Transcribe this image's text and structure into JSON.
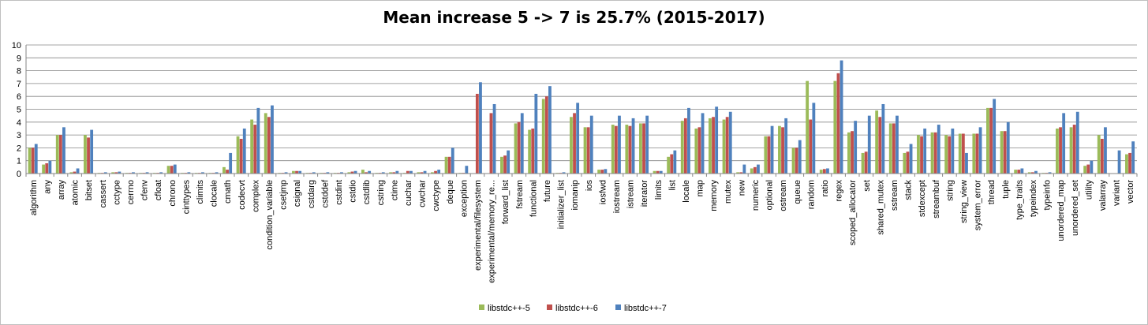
{
  "chart_data": {
    "type": "bar",
    "title": "Mean increase 5 -> 7 is 25.7% (2015-2017)",
    "xlabel": "",
    "ylabel": "",
    "ylim": [
      0,
      10
    ],
    "yticks": [
      0,
      1,
      2,
      3,
      4,
      5,
      6,
      7,
      8,
      9,
      10
    ],
    "grid": true,
    "legend_position": "bottom",
    "categories": [
      "algorithm",
      "any",
      "array",
      "atomic",
      "bitset",
      "cassert",
      "cctype",
      "cerrno",
      "cfenv",
      "cfloat",
      "chrono",
      "cinttypes",
      "climits",
      "clocale",
      "cmath",
      "codecvt",
      "complex",
      "condition_variable",
      "csetjmp",
      "csignal",
      "cstdarg",
      "cstddef",
      "cstdint",
      "cstdio",
      "cstdlib",
      "cstring",
      "ctime",
      "cuchar",
      "cwchar",
      "cwctype",
      "deque",
      "exception",
      "experimental/filesystem",
      "experimental/memory_re...",
      "forward_list",
      "fstream",
      "functional",
      "future",
      "initializer_list",
      "iomanip",
      "ios",
      "iosfwd",
      "iostream",
      "istream",
      "iterator",
      "limits",
      "list",
      "locale",
      "map",
      "memory",
      "mutex",
      "new",
      "numeric",
      "optional",
      "ostream",
      "queue",
      "random",
      "ratio",
      "regex",
      "scoped_allocator",
      "set",
      "shared_mutex",
      "sstream",
      "stack",
      "stdexcept",
      "streambuf",
      "string",
      "string_view",
      "system_error",
      "thread",
      "tuple",
      "type_traits",
      "typeindex",
      "typeinfo",
      "unordered_map",
      "unordered_set",
      "utility",
      "valarray",
      "variant",
      "vector"
    ],
    "series": [
      {
        "name": "libstdc++-5",
        "color": "#9bbb59",
        "values": [
          2.0,
          0.7,
          3.0,
          0.1,
          3.0,
          0.05,
          0.1,
          0.05,
          0.05,
          0.05,
          0.6,
          0.05,
          0.05,
          0.05,
          0.5,
          2.9,
          4.2,
          4.7,
          0.05,
          0.2,
          0.05,
          0.05,
          0.05,
          0.1,
          0.3,
          0.05,
          0.1,
          0.05,
          0.1,
          0.1,
          1.3,
          0.05,
          0,
          0,
          1.3,
          3.9,
          3.4,
          5.8,
          0.05,
          4.4,
          3.6,
          0.3,
          3.8,
          3.8,
          3.9,
          0.2,
          1.3,
          4.1,
          3.5,
          4.3,
          4.2,
          0.1,
          0.4,
          2.9,
          3.7,
          2.0,
          7.2,
          0.3,
          7.2,
          3.2,
          1.6,
          4.9,
          3.9,
          1.6,
          3.0,
          3.2,
          3.0,
          3.1,
          3.1,
          5.1,
          3.3,
          0.3,
          0.1,
          0.05,
          3.5,
          3.6,
          0.6,
          3.0,
          0,
          1.5
        ]
      },
      {
        "name": "libstdc++-6",
        "color": "#c0504d",
        "values": [
          2.0,
          0.8,
          3.0,
          0.15,
          2.8,
          0.05,
          0.1,
          0.05,
          0.05,
          0.05,
          0.6,
          0.05,
          0.05,
          0.05,
          0.3,
          2.7,
          3.8,
          4.4,
          0.05,
          0.2,
          0.05,
          0.05,
          0.05,
          0.15,
          0.1,
          0.05,
          0.1,
          0.2,
          0.1,
          0.2,
          1.3,
          0.05,
          6.2,
          4.7,
          1.4,
          4.0,
          3.5,
          6.0,
          0.05,
          4.7,
          3.6,
          0.3,
          3.7,
          3.7,
          3.9,
          0.2,
          1.5,
          4.3,
          3.6,
          4.4,
          4.4,
          0.1,
          0.5,
          2.9,
          3.6,
          2.0,
          4.2,
          0.35,
          7.8,
          3.3,
          1.7,
          4.4,
          3.9,
          1.7,
          2.9,
          3.2,
          2.9,
          3.1,
          3.1,
          5.1,
          3.3,
          0.3,
          0.1,
          0.05,
          3.6,
          3.8,
          0.7,
          2.7,
          0,
          1.6
        ]
      },
      {
        "name": "libstdc++-7",
        "color": "#4f81bd",
        "values": [
          2.3,
          1.0,
          3.6,
          0.4,
          3.4,
          0.1,
          0.15,
          0.1,
          0.1,
          0.1,
          0.7,
          0.1,
          0.1,
          0.1,
          1.6,
          3.5,
          5.1,
          5.3,
          0.1,
          0.2,
          0.1,
          0.1,
          0.1,
          0.2,
          0.2,
          0.1,
          0.2,
          0.2,
          0.2,
          0.3,
          2.0,
          0.6,
          7.1,
          5.4,
          1.8,
          4.7,
          6.2,
          6.8,
          0.1,
          5.5,
          4.5,
          0.35,
          4.5,
          4.3,
          4.5,
          0.2,
          1.8,
          5.1,
          4.7,
          5.2,
          4.8,
          0.7,
          0.7,
          3.7,
          4.3,
          2.6,
          5.5,
          0.4,
          8.8,
          4.1,
          4.5,
          5.4,
          4.5,
          2.3,
          3.5,
          3.8,
          3.5,
          1.6,
          3.6,
          5.8,
          4.0,
          0.4,
          0.2,
          0.1,
          4.7,
          4.8,
          1.0,
          3.6,
          1.8,
          2.5
        ]
      }
    ]
  }
}
